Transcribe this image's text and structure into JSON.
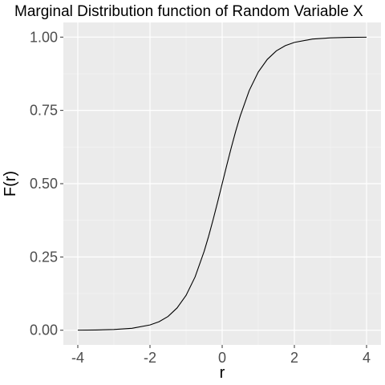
{
  "chart_data": {
    "type": "line",
    "title": "Marginal Distribution function of Random Variable X",
    "xlabel": "r",
    "ylabel": "F(r)",
    "xlim": [
      -4.4,
      4.4
    ],
    "ylim": [
      -0.05,
      1.05
    ],
    "x_ticks": [
      -4,
      -2,
      0,
      2,
      4
    ],
    "x_tick_labels": [
      "-4",
      "-2",
      "0",
      "2",
      "4"
    ],
    "y_ticks": [
      0.0,
      0.25,
      0.5,
      0.75,
      1.0
    ],
    "y_tick_labels": [
      "0.00",
      "0.25",
      "0.50",
      "0.75",
      "1.00"
    ],
    "grid": true,
    "series": [
      {
        "color": "#000000",
        "x": [
          -4.0,
          -3.5,
          -3.0,
          -2.5,
          -2.0,
          -1.75,
          -1.5,
          -1.25,
          -1.0,
          -0.75,
          -0.5,
          -0.375,
          -0.25,
          -0.125,
          0.0,
          0.125,
          0.25,
          0.375,
          0.5,
          0.75,
          1.0,
          1.25,
          1.5,
          1.75,
          2.0,
          2.5,
          3.0,
          3.5,
          4.0
        ],
        "y": [
          0.0003,
          0.0009,
          0.0025,
          0.0067,
          0.018,
          0.029,
          0.047,
          0.076,
          0.119,
          0.182,
          0.269,
          0.321,
          0.378,
          0.438,
          0.5,
          0.562,
          0.622,
          0.679,
          0.731,
          0.818,
          0.881,
          0.924,
          0.953,
          0.971,
          0.982,
          0.9933,
          0.9975,
          0.9991,
          0.9997
        ]
      }
    ]
  }
}
